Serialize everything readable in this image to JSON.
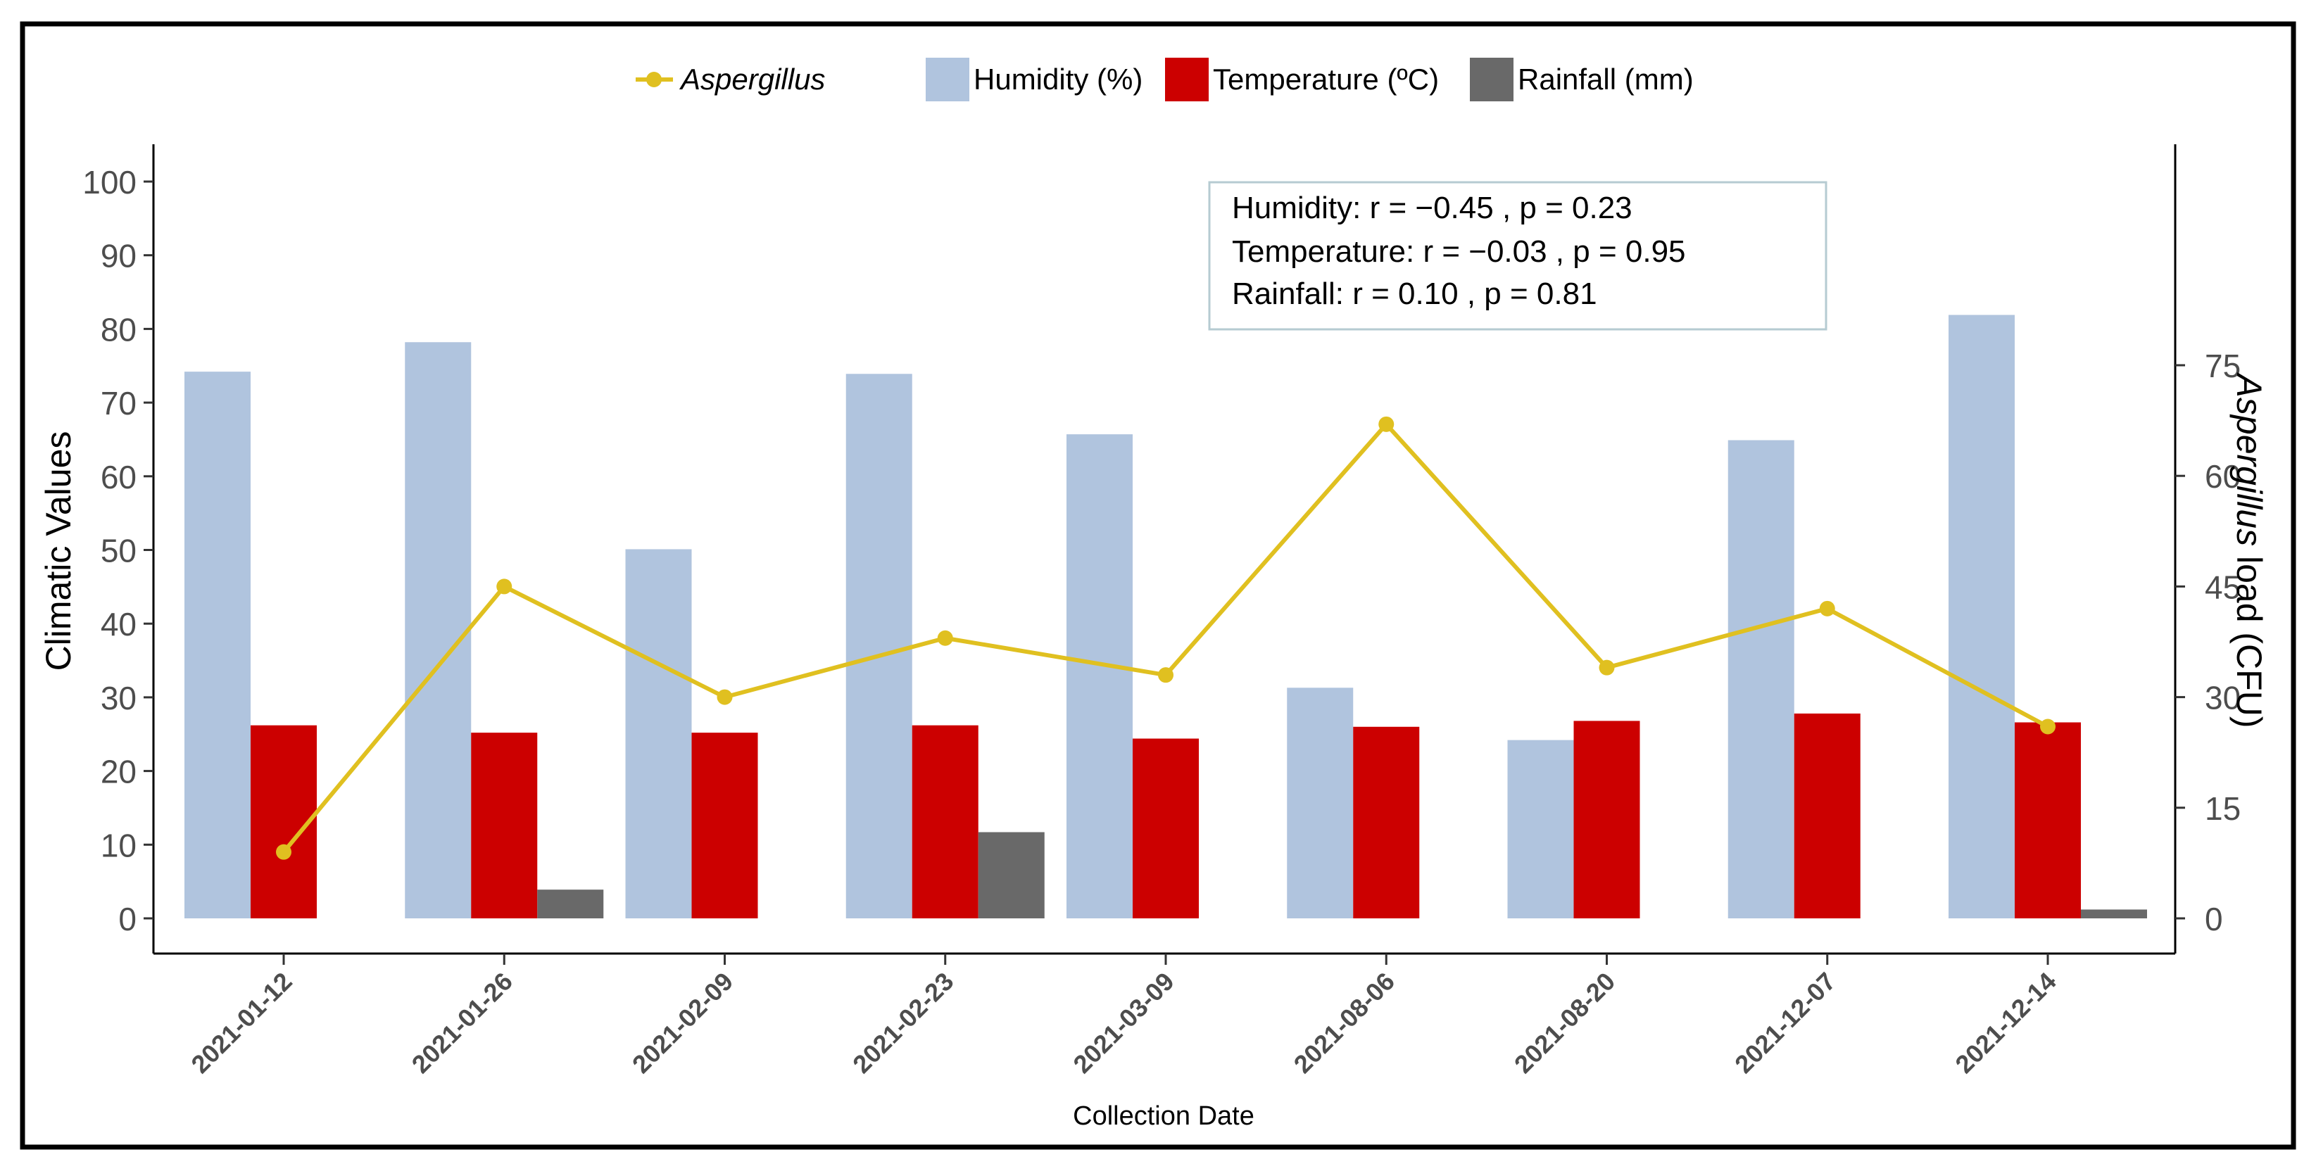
{
  "chart_data": {
    "type": "bar",
    "categories": [
      "2021-01-12",
      "2021-01-26",
      "2021-02-09",
      "2021-02-23",
      "2021-03-09",
      "2021-08-06",
      "2021-08-20",
      "2021-12-07",
      "2021-12-14"
    ],
    "series": [
      {
        "name": "Humidity (%)",
        "kind": "bar",
        "axis": "left",
        "color": "#b0c4de",
        "values": [
          74.2,
          78.2,
          50.1,
          73.9,
          65.7,
          31.3,
          24.2,
          64.9,
          81.9
        ]
      },
      {
        "name": "Temperature (ºC)",
        "kind": "bar",
        "axis": "left",
        "color": "#cc0000",
        "values": [
          26.2,
          25.2,
          25.2,
          26.2,
          24.4,
          26.0,
          26.8,
          27.8,
          26.6
        ]
      },
      {
        "name": "Rainfall (mm)",
        "kind": "bar",
        "axis": "left",
        "color": "#696969",
        "values": [
          0,
          3.9,
          0,
          11.7,
          0,
          0,
          0,
          0,
          1.2
        ]
      },
      {
        "name": "Aspergillus",
        "kind": "line",
        "axis": "right",
        "color": "#e0c020",
        "values": [
          9,
          45,
          30,
          38,
          33,
          67,
          34,
          42,
          26
        ]
      }
    ],
    "title": "",
    "xlabel": "Collection Date",
    "ylabel": "Climatic Values",
    "y2label": {
      "italic": "Aspergillus",
      "rest": " load (CFU)"
    },
    "ylim": [
      0,
      100
    ],
    "yticks": [
      0,
      10,
      20,
      30,
      40,
      50,
      60,
      70,
      80,
      90,
      100
    ],
    "y2lim": [
      0,
      75
    ],
    "y2ticks": [
      0,
      15,
      30,
      45,
      60,
      75
    ],
    "legend_position": "top-center",
    "annotation": [
      "Humidity: r = −0.45 , p = 0.23",
      "Temperature: r = −0.03 , p = 0.95",
      "Rainfall: r = 0.10 , p = 0.81"
    ]
  }
}
